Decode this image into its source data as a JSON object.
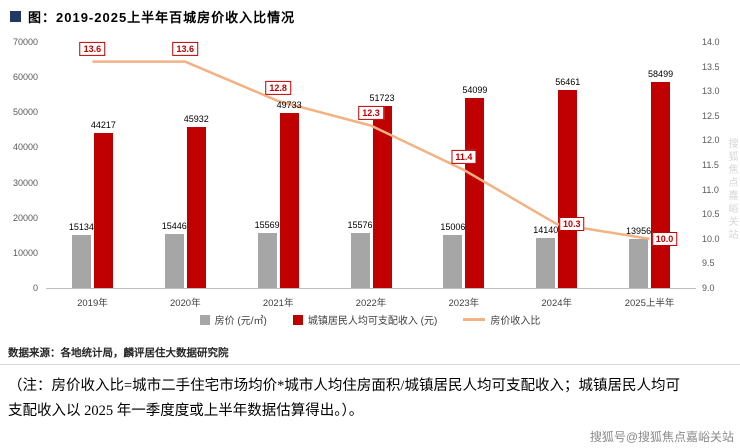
{
  "title": "图：2019-2025上半年百城房价收入比情况",
  "source": "数据来源：各地统计局，麟评居住大数据研究院",
  "note_line1": "（注：房价收入比=城市二手住宅市场均价*城市人均住房面积/城镇居民人均可支配收入；城镇居民人均可",
  "note_line2": "支配收入以 2025 年一季度度或上半年数据估算得出。）。",
  "watermark": "搜狐号@搜狐焦点嘉峪关站",
  "watermark_vertical": "搜狐焦点嘉峪关站",
  "colors": {
    "title_bullet": "#1f3864",
    "house_price_bar": "#a6a6a6",
    "income_bar": "#c00000",
    "ratio_line": "#f4b183",
    "axis_text": "#595959",
    "divider": "#d9d9d9"
  },
  "chart_data": {
    "type": "bar",
    "subtype": "grouped bars with line overlay (dual axis)",
    "title": "图：2019-2025上半年百城房价收入比情况",
    "categories": [
      "2019年",
      "2020年",
      "2021年",
      "2022年",
      "2023年",
      "2024年",
      "2025上半年"
    ],
    "series": [
      {
        "key": "house-price",
        "name": "房价 (元/㎡)",
        "chart": "bar",
        "color": "#a6a6a6",
        "axis": "left",
        "values": [
          15134,
          15446,
          15569,
          15576,
          15006,
          14140,
          13956
        ]
      },
      {
        "key": "income",
        "name": "城镇居民人均可支配收入 (元)",
        "chart": "bar",
        "color": "#c00000",
        "axis": "left",
        "values": [
          44217,
          45932,
          49733,
          51723,
          54099,
          56461,
          58499
        ]
      },
      {
        "key": "price-income-ratio",
        "name": "房价收入比",
        "chart": "line",
        "color": "#f4b183",
        "axis": "right",
        "values": [
          13.6,
          13.6,
          12.8,
          12.3,
          11.4,
          10.3,
          10.0
        ]
      }
    ],
    "left_axis": {
      "min": 0,
      "max": 70000,
      "step": 10000,
      "ticks": [
        "70000",
        "60000",
        "50000",
        "40000",
        "30000",
        "20000",
        "10000",
        "0"
      ]
    },
    "right_axis": {
      "min": 9.0,
      "max": 14.0,
      "step": 0.5,
      "ticks": [
        "14.0",
        "13.5",
        "13.0",
        "12.5",
        "12.0",
        "11.5",
        "11.0",
        "10.5",
        "10.0",
        "9.5",
        "9.0"
      ]
    },
    "legend_position": "bottom",
    "grid": false
  }
}
